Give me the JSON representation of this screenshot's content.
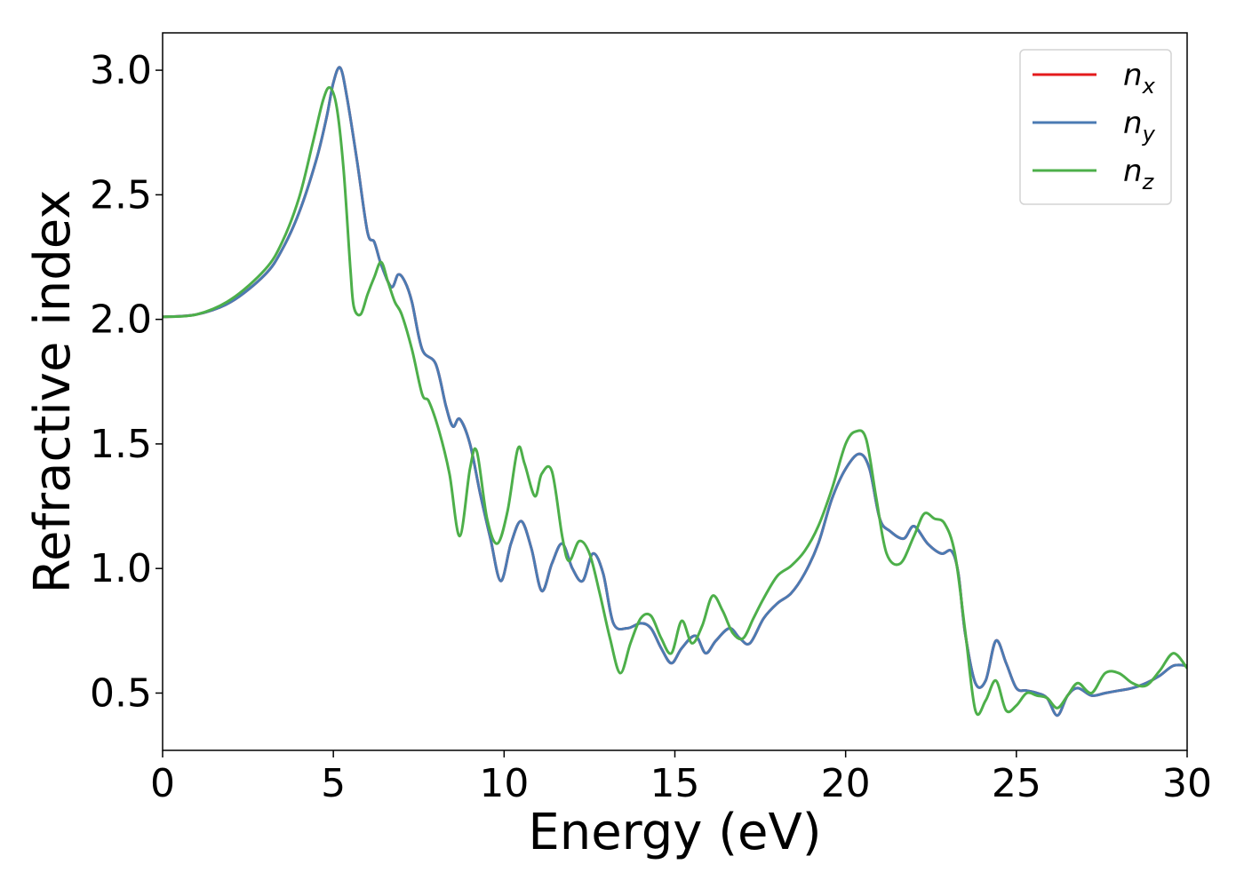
{
  "chart_data": {
    "type": "line",
    "title": "",
    "xlabel": "Energy (eV)",
    "ylabel": "Refractive index",
    "xlim": [
      0,
      30
    ],
    "ylim": [
      0.27,
      3.15
    ],
    "xticks": [
      0,
      5,
      10,
      15,
      20,
      25,
      30
    ],
    "xtick_labels": [
      "0",
      "5",
      "10",
      "15",
      "20",
      "25",
      "30"
    ],
    "yticks": [
      0.5,
      1.0,
      1.5,
      2.0,
      2.5,
      3.0
    ],
    "ytick_labels": [
      "0.5",
      "1.0",
      "1.5",
      "2.0",
      "2.5",
      "3.0"
    ],
    "grid": false,
    "legend_position": "top-right",
    "series": [
      {
        "name": "n_x",
        "legend_base": "n",
        "legend_sub": "x",
        "color": "#e41a1c",
        "x": [
          0,
          1,
          2,
          3,
          3.5,
          4,
          4.5,
          4.8,
          5.0,
          5.2,
          5.4,
          5.7,
          6.0,
          6.2,
          6.4,
          6.7,
          6.9,
          7.1,
          7.3,
          7.6,
          8.0,
          8.3,
          8.5,
          8.7,
          9.0,
          9.3,
          9.6,
          9.9,
          10.2,
          10.5,
          10.8,
          11.1,
          11.4,
          11.7,
          12.0,
          12.3,
          12.6,
          12.9,
          13.2,
          13.6,
          14.0,
          14.3,
          14.6,
          14.9,
          15.2,
          15.6,
          15.9,
          16.2,
          16.6,
          16.9,
          17.2,
          17.6,
          18.0,
          18.4,
          18.8,
          19.2,
          19.6,
          20.0,
          20.4,
          20.7,
          21.0,
          21.3,
          21.7,
          22.0,
          22.4,
          22.8,
          23.1,
          23.3,
          23.5,
          23.8,
          24.1,
          24.4,
          24.7,
          25.0,
          25.3,
          25.6,
          25.9,
          26.2,
          26.5,
          26.8,
          27.2,
          27.6,
          28.0,
          28.4,
          28.8,
          29.2,
          29.6,
          30.0
        ],
        "y": [
          2.01,
          2.02,
          2.07,
          2.18,
          2.28,
          2.43,
          2.64,
          2.81,
          2.95,
          3.01,
          2.89,
          2.63,
          2.35,
          2.31,
          2.22,
          2.13,
          2.18,
          2.15,
          2.07,
          1.88,
          1.82,
          1.65,
          1.57,
          1.6,
          1.5,
          1.3,
          1.12,
          0.95,
          1.1,
          1.19,
          1.08,
          0.91,
          1.02,
          1.1,
          1.0,
          0.95,
          1.06,
          0.98,
          0.78,
          0.76,
          0.78,
          0.76,
          0.68,
          0.62,
          0.68,
          0.73,
          0.66,
          0.71,
          0.76,
          0.72,
          0.7,
          0.8,
          0.86,
          0.9,
          0.98,
          1.1,
          1.28,
          1.4,
          1.46,
          1.4,
          1.2,
          1.15,
          1.12,
          1.17,
          1.1,
          1.06,
          1.07,
          0.98,
          0.74,
          0.54,
          0.55,
          0.71,
          0.62,
          0.52,
          0.51,
          0.5,
          0.48,
          0.41,
          0.49,
          0.52,
          0.49,
          0.5,
          0.51,
          0.52,
          0.54,
          0.57,
          0.61,
          0.61
        ]
      },
      {
        "name": "n_y",
        "legend_base": "n",
        "legend_sub": "y",
        "color": "#4b7bb3",
        "x": [
          0,
          1,
          2,
          3,
          3.5,
          4,
          4.5,
          4.8,
          5.0,
          5.2,
          5.4,
          5.7,
          6.0,
          6.2,
          6.4,
          6.7,
          6.9,
          7.1,
          7.3,
          7.6,
          8.0,
          8.3,
          8.5,
          8.7,
          9.0,
          9.3,
          9.6,
          9.9,
          10.2,
          10.5,
          10.8,
          11.1,
          11.4,
          11.7,
          12.0,
          12.3,
          12.6,
          12.9,
          13.2,
          13.6,
          14.0,
          14.3,
          14.6,
          14.9,
          15.2,
          15.6,
          15.9,
          16.2,
          16.6,
          16.9,
          17.2,
          17.6,
          18.0,
          18.4,
          18.8,
          19.2,
          19.6,
          20.0,
          20.4,
          20.7,
          21.0,
          21.3,
          21.7,
          22.0,
          22.4,
          22.8,
          23.1,
          23.3,
          23.5,
          23.8,
          24.1,
          24.4,
          24.7,
          25.0,
          25.3,
          25.6,
          25.9,
          26.2,
          26.5,
          26.8,
          27.2,
          27.6,
          28.0,
          28.4,
          28.8,
          29.2,
          29.6,
          30.0
        ],
        "y": [
          2.01,
          2.02,
          2.07,
          2.18,
          2.28,
          2.43,
          2.64,
          2.81,
          2.95,
          3.01,
          2.89,
          2.63,
          2.35,
          2.31,
          2.22,
          2.13,
          2.18,
          2.15,
          2.07,
          1.88,
          1.82,
          1.65,
          1.57,
          1.6,
          1.5,
          1.3,
          1.12,
          0.95,
          1.1,
          1.19,
          1.08,
          0.91,
          1.02,
          1.1,
          1.0,
          0.95,
          1.06,
          0.98,
          0.78,
          0.76,
          0.78,
          0.76,
          0.68,
          0.62,
          0.68,
          0.73,
          0.66,
          0.71,
          0.76,
          0.72,
          0.7,
          0.8,
          0.86,
          0.9,
          0.98,
          1.1,
          1.28,
          1.4,
          1.46,
          1.4,
          1.2,
          1.15,
          1.12,
          1.17,
          1.1,
          1.06,
          1.07,
          0.98,
          0.74,
          0.54,
          0.55,
          0.71,
          0.62,
          0.52,
          0.51,
          0.5,
          0.48,
          0.41,
          0.49,
          0.52,
          0.49,
          0.5,
          0.51,
          0.52,
          0.54,
          0.57,
          0.61,
          0.61
        ]
      },
      {
        "name": "n_z",
        "legend_base": "n",
        "legend_sub": "z",
        "color": "#4daf4a",
        "x": [
          0,
          1,
          2,
          3,
          3.5,
          4,
          4.4,
          4.7,
          4.9,
          5.1,
          5.3,
          5.5,
          5.6,
          5.8,
          6.0,
          6.2,
          6.4,
          6.6,
          6.8,
          7.0,
          7.3,
          7.6,
          7.8,
          8.1,
          8.4,
          8.7,
          9.0,
          9.2,
          9.5,
          9.8,
          10.1,
          10.4,
          10.6,
          10.9,
          11.1,
          11.4,
          11.7,
          11.9,
          12.2,
          12.5,
          12.8,
          13.1,
          13.4,
          13.7,
          14.0,
          14.3,
          14.6,
          14.9,
          15.2,
          15.5,
          15.8,
          16.1,
          16.4,
          16.7,
          17.0,
          17.3,
          17.6,
          18.0,
          18.4,
          18.8,
          19.2,
          19.6,
          20.0,
          20.3,
          20.6,
          20.9,
          21.2,
          21.6,
          22.0,
          22.3,
          22.6,
          22.9,
          23.2,
          23.5,
          23.8,
          24.1,
          24.4,
          24.7,
          25.0,
          25.3,
          25.6,
          25.9,
          26.2,
          26.5,
          26.8,
          27.2,
          27.6,
          28.0,
          28.4,
          28.8,
          29.2,
          29.6,
          30.0
        ],
        "y": [
          2.01,
          2.02,
          2.08,
          2.2,
          2.31,
          2.49,
          2.71,
          2.88,
          2.93,
          2.85,
          2.6,
          2.2,
          2.05,
          2.02,
          2.1,
          2.17,
          2.23,
          2.15,
          2.07,
          2.02,
          1.88,
          1.7,
          1.67,
          1.55,
          1.38,
          1.13,
          1.4,
          1.47,
          1.2,
          1.1,
          1.23,
          1.48,
          1.42,
          1.29,
          1.38,
          1.39,
          1.13,
          1.03,
          1.11,
          1.06,
          0.9,
          0.72,
          0.58,
          0.7,
          0.8,
          0.81,
          0.72,
          0.66,
          0.79,
          0.7,
          0.77,
          0.89,
          0.83,
          0.74,
          0.72,
          0.8,
          0.88,
          0.97,
          1.01,
          1.07,
          1.17,
          1.32,
          1.5,
          1.55,
          1.52,
          1.28,
          1.06,
          1.02,
          1.13,
          1.22,
          1.2,
          1.18,
          1.06,
          0.75,
          0.43,
          0.47,
          0.55,
          0.43,
          0.45,
          0.5,
          0.49,
          0.48,
          0.44,
          0.49,
          0.54,
          0.5,
          0.58,
          0.58,
          0.54,
          0.53,
          0.59,
          0.66,
          0.6
        ]
      }
    ]
  }
}
